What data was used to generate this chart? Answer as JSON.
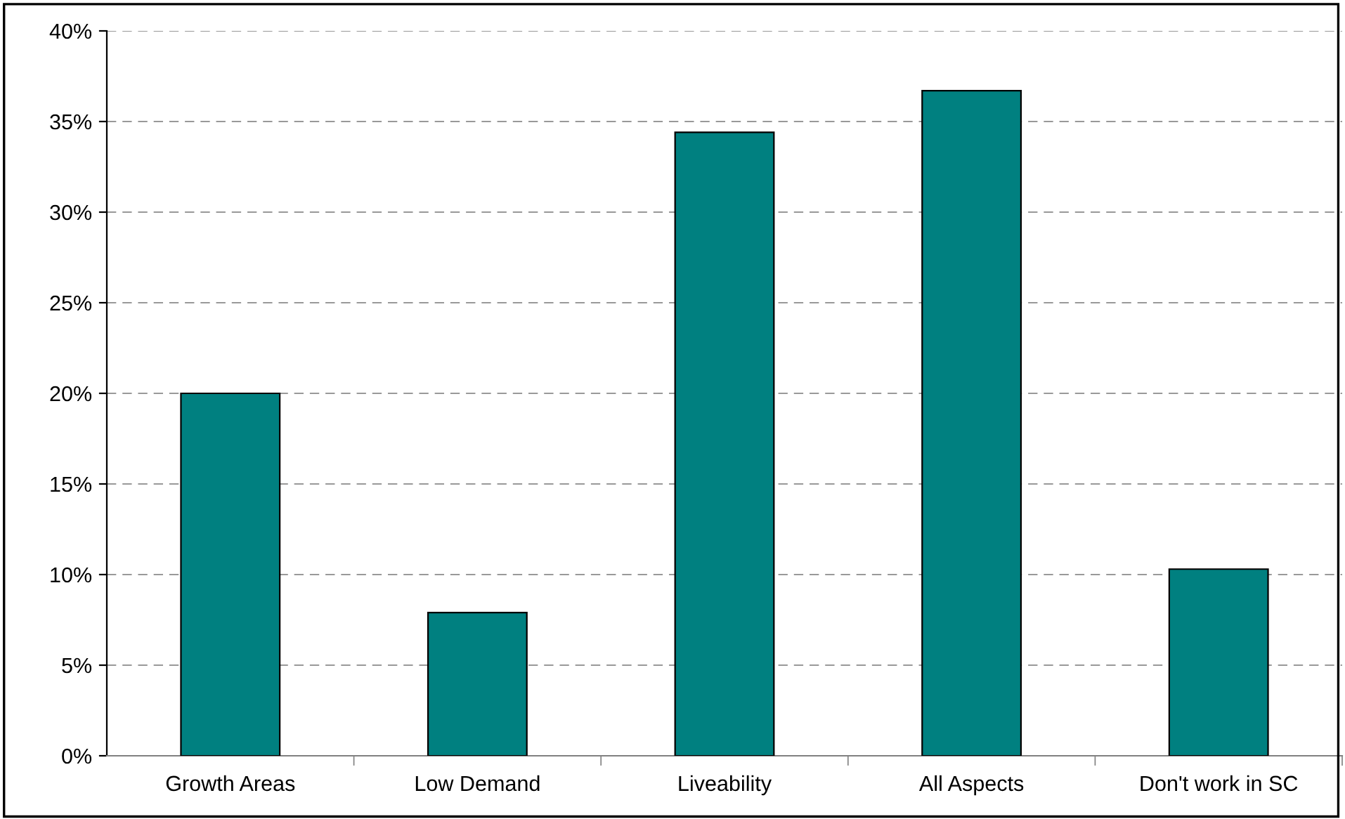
{
  "chart_data": {
    "type": "bar",
    "categories": [
      "Growth Areas",
      "Low Demand",
      "Liveability",
      "All Aspects",
      "Don't work in SC"
    ],
    "values": [
      20.0,
      7.9,
      34.4,
      36.7,
      10.3
    ],
    "color": "#008080",
    "ylim": [
      0,
      40
    ],
    "yticks": [
      {
        "value": 0,
        "label": "0%"
      },
      {
        "value": 5,
        "label": "5%"
      },
      {
        "value": 10,
        "label": "10%"
      },
      {
        "value": 15,
        "label": "15%"
      },
      {
        "value": 20,
        "label": "20%"
      },
      {
        "value": 25,
        "label": "25%"
      },
      {
        "value": 30,
        "label": "30%"
      },
      {
        "value": 35,
        "label": "35%"
      },
      {
        "value": 40,
        "label": "40%"
      }
    ],
    "grid": "y",
    "legend": false
  }
}
